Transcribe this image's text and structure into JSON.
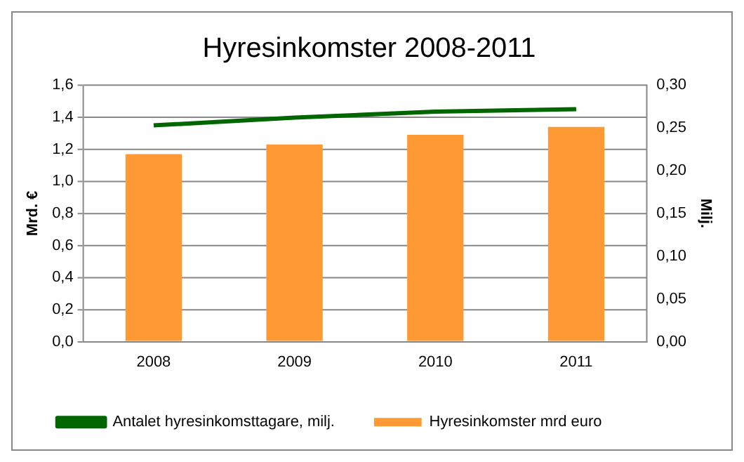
{
  "chart_data": {
    "type": "bar",
    "title": "Hyresinkomster 2008-2011",
    "ylabel": "Mrd. €",
    "y2label": "Milj.",
    "categories": [
      "2008",
      "2009",
      "2010",
      "2011"
    ],
    "series": [
      {
        "name": "Hyresinkomster mrd euro",
        "color": "#ff9933",
        "values": [
          1.17,
          1.23,
          1.29,
          1.34
        ]
      },
      {
        "name": "Antalet hyresinkomsttagare, milj.",
        "type": "line",
        "axis": "y2",
        "color": "#006600",
        "values": [
          0.253,
          0.262,
          0.269,
          0.272
        ]
      }
    ],
    "ylim": [
      0,
      1.6
    ],
    "yticks": [
      {
        "value": 0,
        "label": "0,0"
      },
      {
        "value": 0.2,
        "label": "0,2"
      },
      {
        "value": 0.4,
        "label": "0,4"
      },
      {
        "value": 0.6,
        "label": "0,6"
      },
      {
        "value": 0.8,
        "label": "0,8"
      },
      {
        "value": 1,
        "label": "1,0"
      },
      {
        "value": 1.2,
        "label": "1,2"
      },
      {
        "value": 1.4,
        "label": "1,4"
      },
      {
        "value": 1.6,
        "label": "1,6"
      }
    ],
    "y2lim": [
      0,
      0.3
    ],
    "y2ticks": [
      {
        "value": 0,
        "label": "0,00"
      },
      {
        "value": 0.05,
        "label": "0,05"
      },
      {
        "value": 0.1,
        "label": "0,10"
      },
      {
        "value": 0.15,
        "label": "0,15"
      },
      {
        "value": 0.2,
        "label": "0,20"
      },
      {
        "value": 0.25,
        "label": "0,25"
      },
      {
        "value": 0.3,
        "label": "0,30"
      }
    ],
    "grid": "y",
    "legend": "bottom",
    "marker": "none"
  }
}
